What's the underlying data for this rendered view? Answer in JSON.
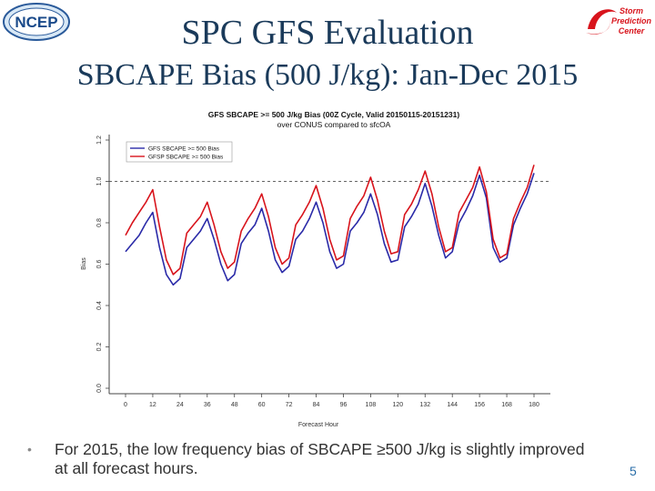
{
  "slide": {
    "title": "SPC GFS Evaluation",
    "subtitle": "SBCAPE Bias (500 J/kg):  Jan-Dec 2015",
    "bullet": "For 2015, the low frequency bias of SBCAPE ≥500 J/kg is slightly improved at all forecast hours.",
    "bullet_glyph": "•",
    "page_number": "5",
    "colors": {
      "title": "#1a3a5a",
      "page_number": "#2a6ea8",
      "gfs": "#2a2aa8",
      "gfsp": "#d8141c"
    }
  },
  "logos": {
    "ncep": {
      "text": "NCEP",
      "icon": "ncep-logo-icon"
    },
    "spc": {
      "text": "Storm Prediction Center",
      "lines": [
        "Storm",
        "Prediction",
        "Center"
      ],
      "icon": "spc-logo-icon"
    }
  },
  "chart_data": {
    "type": "line",
    "title": "GFS SBCAPE >= 500 J/kg Bias (00Z Cycle, Valid 20150115-20151231)",
    "subtitle": "over CONUS compared to sfcOA",
    "xlabel": "Forecast Hour",
    "ylabel": "Bias",
    "xlim": [
      0,
      180
    ],
    "ylim": [
      0,
      1.2
    ],
    "xticks": [
      0,
      12,
      24,
      36,
      48,
      60,
      72,
      84,
      96,
      108,
      120,
      132,
      144,
      156,
      168,
      180
    ],
    "yticks": [
      0.0,
      0.2,
      0.4,
      0.6,
      0.8,
      1.0,
      1.2
    ],
    "ytick_labels": [
      "0.0",
      "0.2",
      "0.4",
      "0.6",
      "0.8",
      "1.0",
      "1.2"
    ],
    "reference_line": 1.0,
    "legend_position": "top-left",
    "x": [
      0,
      3,
      6,
      9,
      12,
      15,
      18,
      21,
      24,
      27,
      30,
      33,
      36,
      39,
      42,
      45,
      48,
      51,
      54,
      57,
      60,
      63,
      66,
      69,
      72,
      75,
      78,
      81,
      84,
      87,
      90,
      93,
      96,
      99,
      102,
      105,
      108,
      111,
      114,
      117,
      120,
      123,
      126,
      129,
      132,
      135,
      138,
      141,
      144,
      147,
      150,
      153,
      156,
      159,
      162,
      165,
      168,
      171,
      174,
      177,
      180
    ],
    "series": [
      {
        "name": "GFS SBCAPE >= 500 Bias",
        "color": "#2a2aa8",
        "values": [
          0.66,
          0.7,
          0.74,
          0.8,
          0.85,
          0.68,
          0.55,
          0.5,
          0.53,
          0.68,
          0.72,
          0.76,
          0.82,
          0.72,
          0.6,
          0.52,
          0.55,
          0.7,
          0.75,
          0.79,
          0.87,
          0.76,
          0.62,
          0.56,
          0.59,
          0.72,
          0.76,
          0.82,
          0.9,
          0.8,
          0.66,
          0.58,
          0.6,
          0.76,
          0.8,
          0.85,
          0.94,
          0.84,
          0.7,
          0.61,
          0.62,
          0.78,
          0.83,
          0.89,
          0.99,
          0.88,
          0.74,
          0.63,
          0.66,
          0.8,
          0.86,
          0.93,
          1.03,
          0.92,
          0.68,
          0.61,
          0.63,
          0.79,
          0.87,
          0.94,
          1.04
        ]
      },
      {
        "name": "GFSP SBCAPE >= 500 Bias",
        "color": "#d8141c",
        "values": [
          0.74,
          0.8,
          0.85,
          0.9,
          0.96,
          0.78,
          0.62,
          0.55,
          0.58,
          0.75,
          0.79,
          0.83,
          0.9,
          0.79,
          0.66,
          0.58,
          0.61,
          0.76,
          0.82,
          0.87,
          0.94,
          0.83,
          0.68,
          0.6,
          0.63,
          0.79,
          0.84,
          0.9,
          0.98,
          0.87,
          0.72,
          0.62,
          0.64,
          0.82,
          0.88,
          0.93,
          1.02,
          0.91,
          0.76,
          0.65,
          0.66,
          0.84,
          0.89,
          0.96,
          1.05,
          0.94,
          0.78,
          0.66,
          0.68,
          0.85,
          0.91,
          0.97,
          1.07,
          0.95,
          0.72,
          0.63,
          0.65,
          0.82,
          0.9,
          0.97,
          1.08
        ]
      }
    ]
  }
}
